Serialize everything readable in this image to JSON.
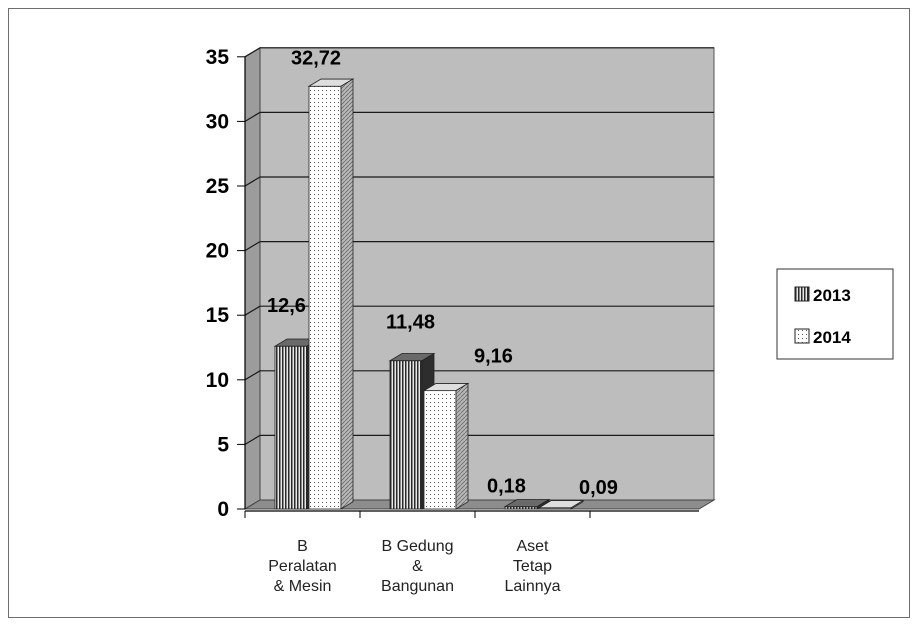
{
  "chart_data": {
    "type": "bar",
    "categories": [
      [
        "B",
        "Peralatan",
        "& Mesin"
      ],
      [
        "B Gedung",
        "&",
        "Bangunan"
      ],
      [
        "Aset",
        "Tetap",
        "Lainnya"
      ]
    ],
    "series": [
      {
        "name": "2013",
        "values": [
          12.6,
          11.48,
          0.18
        ],
        "labels": [
          "12,6",
          "11,48",
          "0,18"
        ]
      },
      {
        "name": "2014",
        "values": [
          32.72,
          9.16,
          0.09
        ],
        "labels": [
          "32,72",
          "9,16",
          "0,09"
        ]
      }
    ],
    "yticks": [
      "0",
      "5",
      "10",
      "15",
      "20",
      "25",
      "30",
      "35"
    ],
    "ylim": [
      0,
      35
    ],
    "grid": true,
    "legend": "right",
    "colors": {
      "plot_back": "#bdbdbd",
      "plot_side": "#9c9c9c",
      "plot_floor": "#8d8d8d",
      "bar2013_face": "#505050",
      "bar2013_top": "#6a6a6a",
      "bar2013_side": "#2d2d2d",
      "bar2014_face": "#f4f4f4",
      "bar2014_top": "#dedede",
      "bar2014_side": "#a8a8a8"
    }
  }
}
